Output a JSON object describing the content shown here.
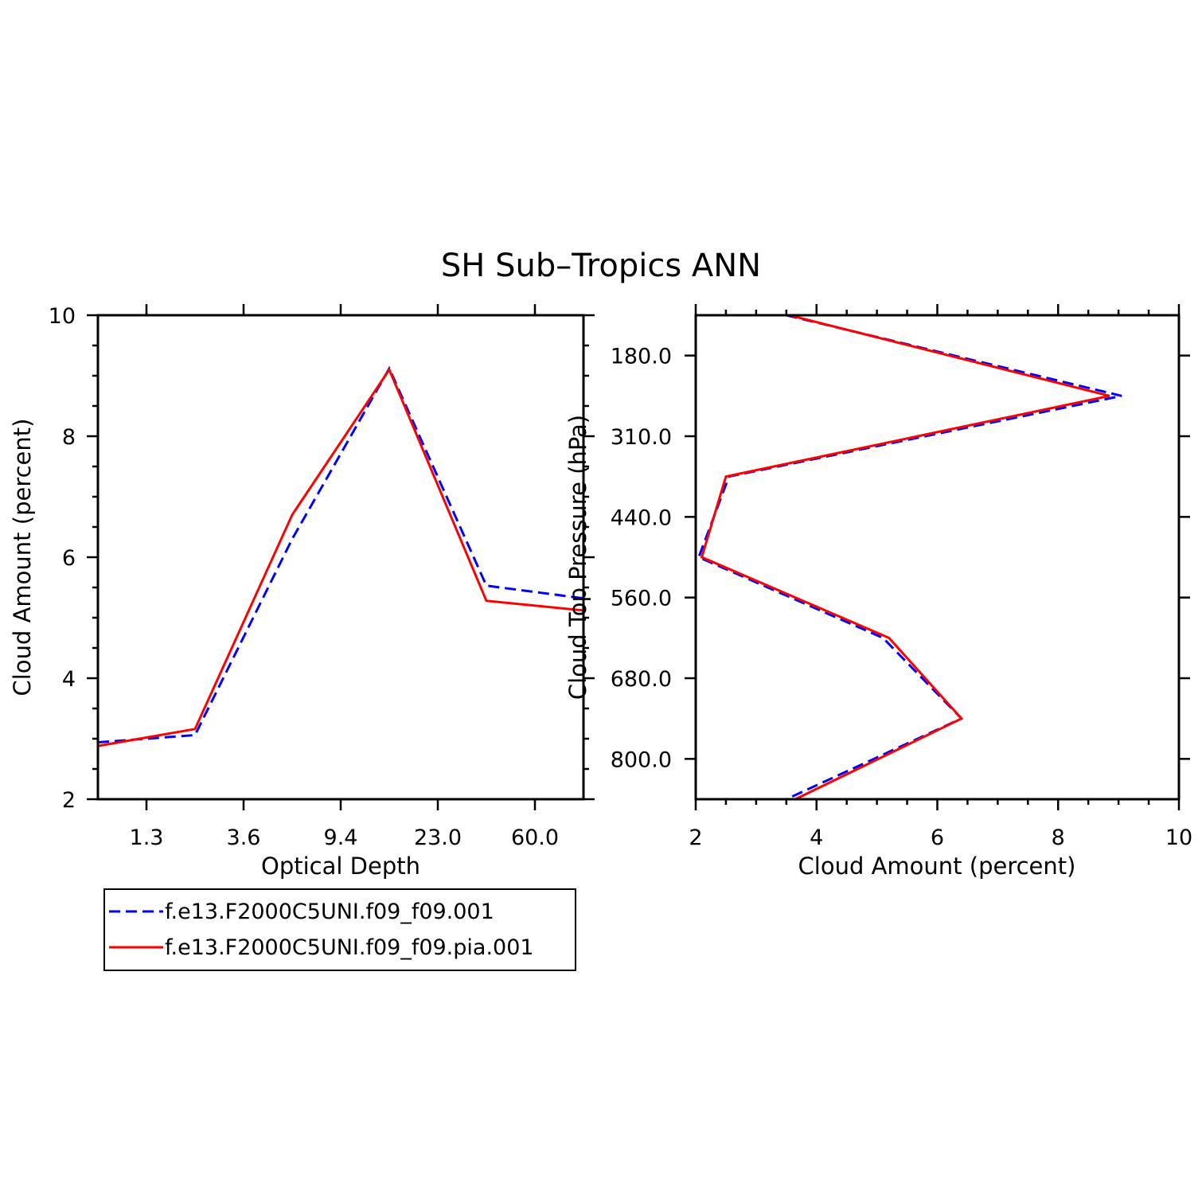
{
  "figure": {
    "title": "SH Sub–Tropics ANN"
  },
  "colors": {
    "series_dashed": "#0000ff",
    "series_solid": "#ff0000",
    "frame": "#000000",
    "background": "#ffffff"
  },
  "legend": {
    "entries": [
      {
        "label": "f.e13.F2000C5UNI.f09_f09.001",
        "color": "#0000ff",
        "dash": "dashed"
      },
      {
        "label": "f.e13.F2000C5UNI.f09_f09.pia.001",
        "color": "#ff0000",
        "dash": "solid"
      }
    ],
    "placement": "below left panel"
  },
  "chart_data": [
    {
      "type": "line",
      "panel": "left",
      "xlabel": "Optical Depth",
      "ylabel": "Cloud Amount (percent)",
      "x_tick_labels": [
        "1.3",
        "3.6",
        "9.4",
        "23.0",
        "60.0"
      ],
      "y_tick_labels": [
        "2",
        "4",
        "6",
        "8",
        "10"
      ],
      "ylim": [
        2,
        10
      ],
      "series": [
        {
          "name": "f.e13.F2000C5UNI.f09_f09.001",
          "color": "#0000ff",
          "dash": "dashed",
          "values": [
            2.94,
            3.06,
            6.3,
            9.12,
            5.53,
            5.32
          ]
        },
        {
          "name": "f.e13.F2000C5UNI.f09_f09.pia.001",
          "color": "#ff0000",
          "dash": "solid",
          "values": [
            2.88,
            3.16,
            6.7,
            9.1,
            5.28,
            5.12
          ]
        }
      ]
    },
    {
      "type": "line",
      "panel": "right",
      "xlabel": "Cloud Amount (percent)",
      "ylabel": "Cloud Top Pressure (hPa)",
      "x_tick_labels": [
        "2",
        "4",
        "6",
        "8",
        "10"
      ],
      "y_tick_labels": [
        "180.0",
        "310.0",
        "440.0",
        "560.0",
        "680.0",
        "800.0"
      ],
      "xlim": [
        2,
        10
      ],
      "y_reversed": true,
      "series": [
        {
          "name": "f.e13.F2000C5UNI.f09_f09.001",
          "color": "#0000ff",
          "dash": "dashed",
          "values": [
            3.5,
            9.05,
            2.55,
            2.05,
            5.1,
            6.4,
            3.5
          ]
        },
        {
          "name": "f.e13.F2000C5UNI.f09_f09.pia.001",
          "color": "#ff0000",
          "dash": "solid",
          "values": [
            3.55,
            8.85,
            2.5,
            2.1,
            5.2,
            6.4,
            3.65
          ]
        }
      ]
    }
  ]
}
